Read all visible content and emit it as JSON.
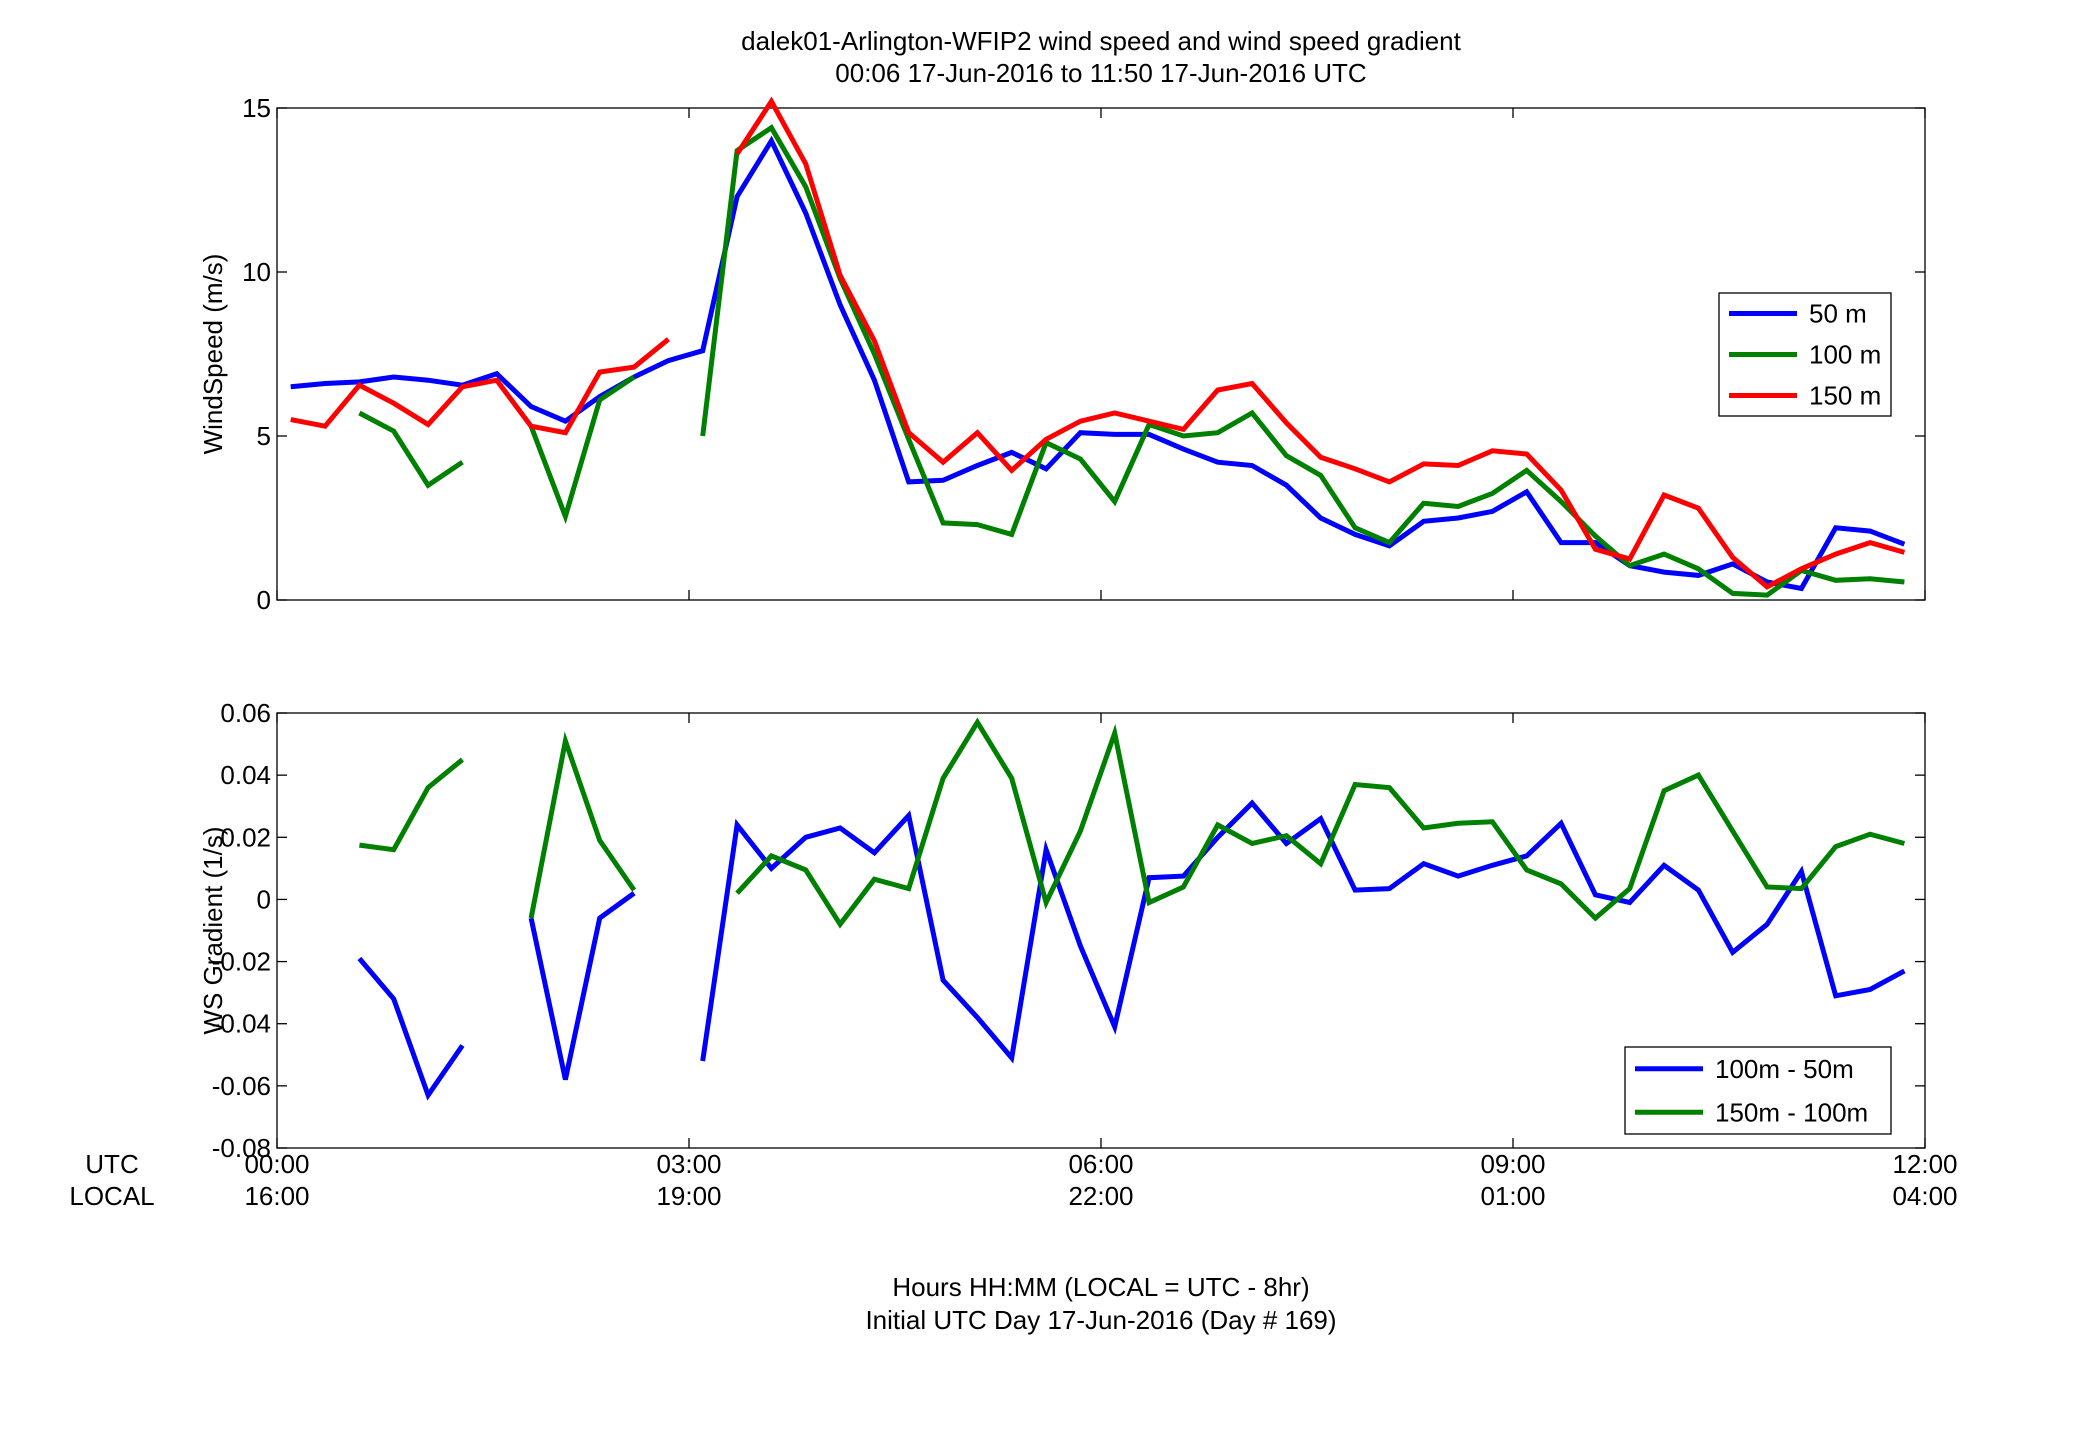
{
  "figure": {
    "title_line1": "dalek01-Arlington-WFIP2  wind speed and wind speed gradient",
    "title_line2": "00:06 17-Jun-2016 to 11:50 17-Jun-2016  UTC",
    "xlabel_line1": "Hours HH:MM  (LOCAL = UTC - 8hr)",
    "xlabel_line2": "Initial UTC Day 17-Jun-2016 (Day # 169)",
    "row_label_utc": "UTC",
    "row_label_local": "LOCAL",
    "x_ticks_utc": [
      "00:00",
      "03:00",
      "06:00",
      "09:00",
      "12:00"
    ],
    "x_ticks_local": [
      "16:00",
      "19:00",
      "22:00",
      "01:00",
      "04:00"
    ]
  },
  "chart_data": [
    {
      "type": "line",
      "ylabel": "WindSpeed (m/s)",
      "xlim": [
        0,
        12
      ],
      "ylim": [
        0,
        15
      ],
      "y_ticks": [
        0,
        5,
        10,
        15
      ],
      "y_tick_labels": [
        "0",
        "5",
        "10",
        "15"
      ],
      "x_tick_values": [
        0,
        3,
        6,
        9,
        12
      ],
      "grid": false,
      "legend_position": "right",
      "series": [
        {
          "name": "50 m",
          "color": "#0000ff",
          "x": [
            0.1,
            0.35,
            0.6,
            0.85,
            1.1,
            1.35,
            1.6,
            1.85,
            2.1,
            2.35,
            2.6,
            2.85,
            3.1,
            3.35,
            3.6,
            3.85,
            4.1,
            4.35,
            4.6,
            4.85,
            5.1,
            5.35,
            5.6,
            5.85,
            6.1,
            6.35,
            6.6,
            6.85,
            7.1,
            7.35,
            7.6,
            7.85,
            8.1,
            8.35,
            8.6,
            8.85,
            9.1,
            9.35,
            9.6,
            9.85,
            10.1,
            10.35,
            10.6,
            10.85,
            11.1,
            11.35,
            11.6,
            11.85
          ],
          "y": [
            6.5,
            6.6,
            6.65,
            6.8,
            6.7,
            6.55,
            6.9,
            5.9,
            5.45,
            6.2,
            6.8,
            7.3,
            7.6,
            12.3,
            14.0,
            11.8,
            9.0,
            6.7,
            3.6,
            3.65,
            4.1,
            4.5,
            4.0,
            5.1,
            5.05,
            5.05,
            4.6,
            4.2,
            4.1,
            3.5,
            2.5,
            2.0,
            1.65,
            2.4,
            2.5,
            2.7,
            3.3,
            1.75,
            1.75,
            1.05,
            0.85,
            0.75,
            1.1,
            0.55,
            0.35,
            2.2,
            2.1,
            1.7
          ]
        },
        {
          "name": "100 m",
          "color": "#008000",
          "x": [
            0.6,
            0.85,
            1.1,
            1.35,
            null,
            1.85,
            2.1,
            2.35,
            2.6,
            null,
            3.1,
            3.35,
            3.6,
            3.85,
            4.1,
            4.35,
            4.6,
            4.85,
            5.1,
            5.35,
            5.6,
            5.85,
            6.1,
            6.35,
            6.6,
            6.85,
            7.1,
            7.35,
            7.6,
            7.85,
            8.1,
            8.35,
            8.6,
            8.85,
            9.1,
            9.35,
            9.6,
            9.85,
            10.1,
            10.35,
            10.6,
            10.85,
            11.1,
            11.35,
            11.6,
            11.85
          ],
          "y": [
            5.7,
            5.15,
            3.5,
            4.2,
            null,
            5.3,
            2.55,
            6.1,
            6.8,
            null,
            5.0,
            13.7,
            14.4,
            12.6,
            9.8,
            7.5,
            4.9,
            2.35,
            2.3,
            2.0,
            4.8,
            4.3,
            3.0,
            5.35,
            5.0,
            5.1,
            5.7,
            4.4,
            3.8,
            2.2,
            1.75,
            2.95,
            2.85,
            3.25,
            3.95,
            3.0,
            1.95,
            1.05,
            1.4,
            0.95,
            0.2,
            0.15,
            0.9,
            0.6,
            0.65,
            0.55
          ]
        },
        {
          "name": "150 m",
          "color": "#ff0000",
          "x": [
            0.1,
            0.35,
            0.6,
            0.85,
            1.1,
            1.35,
            1.6,
            1.85,
            2.1,
            2.35,
            2.6,
            2.85,
            null,
            3.35,
            3.6,
            3.85,
            4.1,
            4.35,
            4.6,
            4.85,
            5.1,
            5.35,
            5.6,
            5.85,
            6.1,
            6.35,
            6.6,
            6.85,
            7.1,
            7.35,
            7.6,
            7.85,
            8.1,
            8.35,
            8.6,
            8.85,
            9.1,
            9.35,
            9.6,
            9.85,
            10.1,
            10.35,
            10.6,
            10.85,
            11.1,
            11.35,
            11.6,
            11.85
          ],
          "y": [
            5.5,
            5.3,
            6.55,
            6.0,
            5.35,
            6.5,
            6.7,
            5.3,
            5.1,
            6.95,
            7.1,
            7.95,
            null,
            13.6,
            15.2,
            13.3,
            9.9,
            7.9,
            5.1,
            4.2,
            5.1,
            3.95,
            4.9,
            5.45,
            5.7,
            5.45,
            5.2,
            6.4,
            6.6,
            5.4,
            4.35,
            4.0,
            3.6,
            4.15,
            4.1,
            4.55,
            4.45,
            3.35,
            1.55,
            1.25,
            3.2,
            2.8,
            1.3,
            0.4,
            0.95,
            1.4,
            1.75,
            1.45
          ]
        }
      ]
    },
    {
      "type": "line",
      "ylabel": "WS Gradient (1/s)",
      "xlim": [
        0,
        12
      ],
      "ylim": [
        -0.08,
        0.06
      ],
      "y_ticks": [
        -0.08,
        -0.06,
        -0.04,
        -0.02,
        0,
        0.02,
        0.04,
        0.06
      ],
      "y_tick_labels": [
        "-0.08",
        "-0.06",
        "-0.04",
        "-0.02",
        "0",
        "0.02",
        "0.04",
        "0.06"
      ],
      "x_tick_values": [
        0,
        3,
        6,
        9,
        12
      ],
      "grid": false,
      "legend_position": "bottom-right",
      "series": [
        {
          "name": "100m - 50m",
          "color": "#0000ff",
          "x": [
            0.6,
            0.85,
            1.1,
            1.35,
            null,
            1.85,
            2.1,
            2.35,
            2.6,
            null,
            3.1,
            3.35,
            3.6,
            3.85,
            4.1,
            4.35,
            4.6,
            4.85,
            5.1,
            5.35,
            5.6,
            5.85,
            6.1,
            6.35,
            6.6,
            6.85,
            7.1,
            7.35,
            7.6,
            7.85,
            8.1,
            8.35,
            8.6,
            8.85,
            9.1,
            9.35,
            9.6,
            9.85,
            10.1,
            10.35,
            10.6,
            10.85,
            11.1,
            11.35,
            11.6,
            11.85
          ],
          "y": [
            -0.019,
            -0.032,
            -0.063,
            -0.047,
            null,
            -0.006,
            -0.058,
            -0.006,
            0.002,
            null,
            -0.052,
            0.024,
            0.01,
            0.02,
            0.023,
            0.015,
            0.027,
            -0.026,
            -0.038,
            -0.051,
            0.016,
            -0.015,
            -0.041,
            0.007,
            0.0075,
            0.02,
            0.031,
            0.018,
            0.026,
            0.003,
            0.0035,
            0.0115,
            0.0075,
            0.011,
            0.014,
            0.0245,
            0.0015,
            -0.001,
            0.011,
            0.003,
            -0.017,
            -0.008,
            0.009,
            -0.031,
            -0.029,
            -0.023
          ]
        },
        {
          "name": "150m - 100m",
          "color": "#008000",
          "x": [
            0.6,
            0.85,
            1.1,
            1.35,
            null,
            1.85,
            2.1,
            2.35,
            2.6,
            null,
            3.35,
            3.6,
            3.85,
            4.1,
            4.35,
            4.6,
            4.85,
            5.1,
            5.35,
            5.6,
            5.85,
            6.1,
            6.35,
            6.6,
            6.85,
            7.1,
            7.35,
            7.6,
            7.85,
            8.1,
            8.35,
            8.6,
            8.85,
            9.1,
            9.35,
            9.6,
            9.85,
            10.1,
            10.35,
            10.6,
            10.85,
            11.1,
            11.35,
            11.6,
            11.85
          ],
          "y": [
            0.0175,
            0.016,
            0.036,
            0.045,
            null,
            -0.006,
            0.051,
            0.019,
            0.003,
            null,
            0.002,
            0.014,
            0.0095,
            -0.008,
            0.0065,
            0.0035,
            0.039,
            0.057,
            0.039,
            -0.001,
            0.022,
            0.0535,
            -0.001,
            0.004,
            0.024,
            0.018,
            0.0205,
            0.0115,
            0.037,
            0.036,
            0.023,
            0.0245,
            0.025,
            0.0095,
            0.005,
            -0.006,
            0.0035,
            0.035,
            0.04,
            0.022,
            0.004,
            0.0035,
            0.017,
            0.021,
            0.018
          ]
        }
      ]
    }
  ]
}
